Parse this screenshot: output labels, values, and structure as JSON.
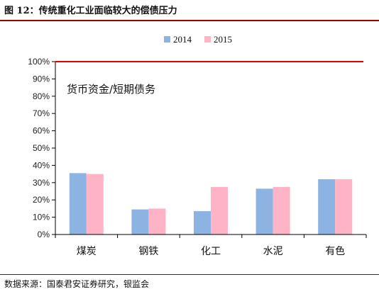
{
  "figure": {
    "title": "图 12：传统重化工业面临较大的偿债压力",
    "source": "数据来源：国泰君安证券研究，银监会"
  },
  "colors": {
    "s2014": "#8db3e2",
    "s2015": "#ffb3c6",
    "reference": "#e00000",
    "rule": "#9a0000"
  },
  "chart_data": {
    "type": "bar",
    "title": "",
    "annotation": "货币资金/短期债务",
    "categories": [
      "煤炭",
      "钢铁",
      "化工",
      "水泥",
      "有色"
    ],
    "series": [
      {
        "name": "2014",
        "values": [
          35.5,
          14.5,
          13.5,
          26.5,
          32.0
        ]
      },
      {
        "name": "2015",
        "values": [
          35.0,
          15.0,
          27.5,
          27.5,
          32.0
        ]
      }
    ],
    "reference_line": 100,
    "yticks": [
      "0%",
      "10%",
      "20%",
      "30%",
      "40%",
      "50%",
      "60%",
      "70%",
      "80%",
      "90%",
      "100%"
    ],
    "ylim": [
      0,
      100
    ],
    "xlabel": "",
    "ylabel": "",
    "grid": false,
    "legend": "top-center"
  }
}
